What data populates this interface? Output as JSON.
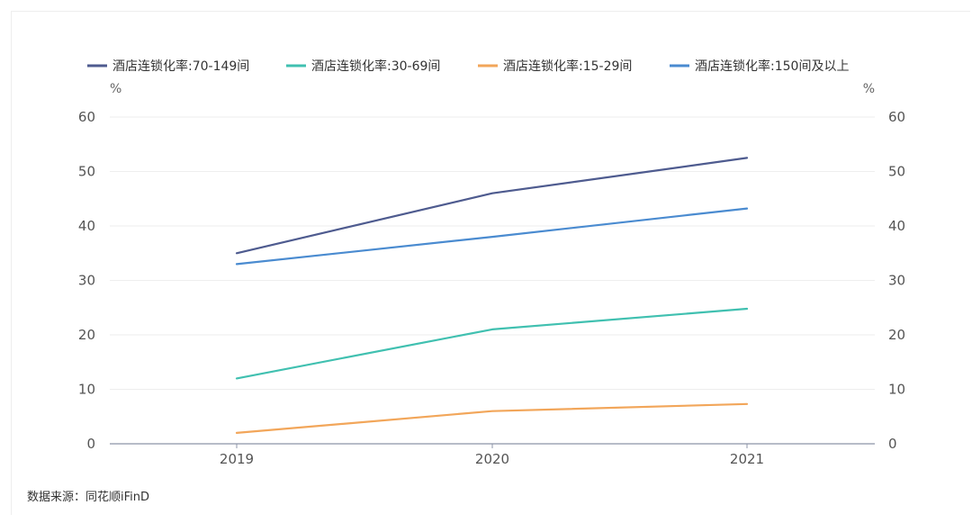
{
  "chart_data": {
    "type": "line",
    "categories": [
      "2019",
      "2020",
      "2021"
    ],
    "series": [
      {
        "name": "酒店连锁化率:70-149间",
        "color": "#4e5b8f",
        "values": [
          35,
          46,
          52.5
        ]
      },
      {
        "name": "酒店连锁化率:30-69间",
        "color": "#40c0b0",
        "values": [
          12,
          21,
          24.8
        ]
      },
      {
        "name": "酒店连锁化率:15-29间",
        "color": "#f2a65a",
        "values": [
          2,
          6,
          7.3
        ]
      },
      {
        "name": "酒店连锁化率:150间及以上",
        "color": "#4a8bd0",
        "values": [
          33,
          38,
          43.2
        ]
      }
    ],
    "y_unit_left": "%",
    "y_unit_right": "%",
    "yticks": [
      "0",
      "10",
      "20",
      "30",
      "40",
      "50",
      "60"
    ],
    "ylim": [
      0,
      60
    ],
    "legend_position": "top",
    "grid": true
  },
  "source": "数据来源：同花顺iFinD"
}
